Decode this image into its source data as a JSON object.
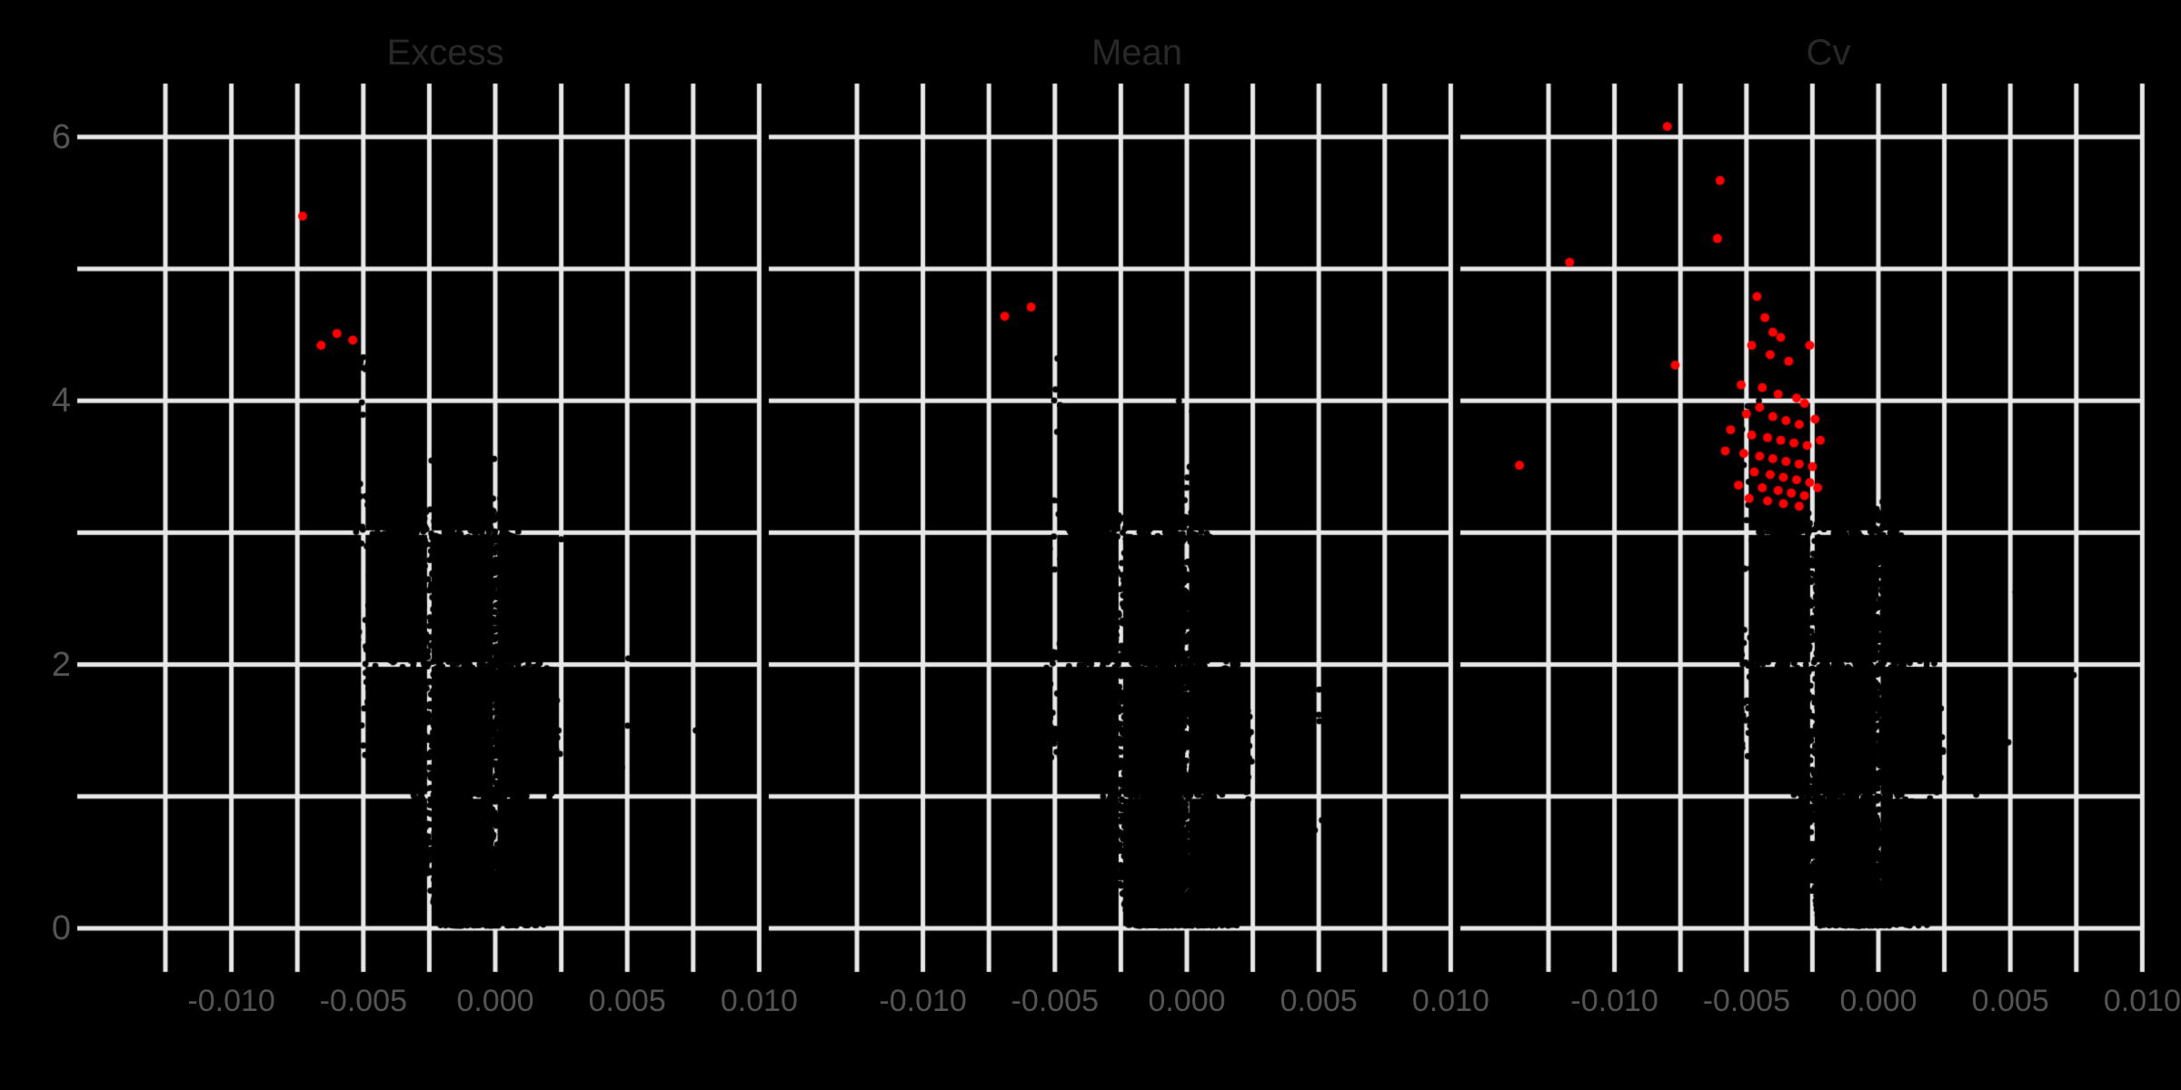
{
  "figure": {
    "background": "#000000",
    "grid_color": "#e8e8e8",
    "axis_label_color": "#545454",
    "title_color": "#282828",
    "point_color": "#000000",
    "highlight_color": "#ff0000"
  },
  "chart_data": {
    "type": "scatter",
    "layout_hint": "three lattice panels sharing one y axis, white reference grid on black, dense black volcano-shaped point clouds with red highlighted points",
    "panels": [
      {
        "title": "Excess",
        "red_points": [
          [
            -0.0073,
            5.4
          ],
          [
            -0.0066,
            4.42
          ],
          [
            -0.006,
            4.51
          ],
          [
            -0.0054,
            4.46
          ]
        ],
        "black_outliers": [
          [
            0.0076,
            1.5
          ],
          [
            -0.005,
            4.33
          ],
          [
            -0.0047,
            4.21
          ],
          [
            0.0022,
            3.4
          ],
          [
            0.0025,
            2.95
          ],
          [
            0.0045,
            1.45
          ],
          [
            0.0041,
            1.3
          ],
          [
            0.0048,
            1.22
          ]
        ],
        "seed": 101
      },
      {
        "title": "Mean",
        "red_points": [
          [
            -0.0069,
            4.64
          ],
          [
            -0.0059,
            4.71
          ]
        ],
        "black_outliers": [
          [
            -0.0056,
            4.36
          ],
          [
            -0.0049,
            4.32
          ],
          [
            0.005,
            1.62
          ],
          [
            0.0044,
            1.38
          ],
          [
            0.004,
            1.25
          ],
          [
            0.0047,
            2.3
          ],
          [
            -0.0003,
            4.0
          ],
          [
            0.0002,
            3.92
          ]
        ],
        "seed": 202
      },
      {
        "title": "Cv",
        "red_points": [
          [
            -0.008,
            6.08
          ],
          [
            -0.006,
            5.67
          ],
          [
            -0.0061,
            5.23
          ],
          [
            -0.0117,
            5.05
          ],
          [
            -0.0136,
            3.51
          ],
          [
            -0.0077,
            4.27
          ],
          [
            -0.0046,
            4.79
          ],
          [
            -0.0043,
            4.63
          ],
          [
            -0.004,
            4.52
          ],
          [
            -0.0037,
            4.48
          ],
          [
            -0.0048,
            4.42
          ],
          [
            -0.0041,
            4.35
          ],
          [
            -0.0034,
            4.3
          ],
          [
            -0.0026,
            4.42
          ],
          [
            -0.0052,
            4.12
          ],
          [
            -0.0044,
            4.1
          ],
          [
            -0.0038,
            4.05
          ],
          [
            -0.0031,
            4.02
          ],
          [
            -0.0028,
            3.98
          ],
          [
            -0.0045,
            3.95
          ],
          [
            -0.005,
            3.9
          ],
          [
            -0.004,
            3.88
          ],
          [
            -0.0035,
            3.85
          ],
          [
            -0.003,
            3.82
          ],
          [
            -0.0024,
            3.86
          ],
          [
            -0.0056,
            3.78
          ],
          [
            -0.0048,
            3.74
          ],
          [
            -0.0042,
            3.72
          ],
          [
            -0.0037,
            3.7
          ],
          [
            -0.0032,
            3.68
          ],
          [
            -0.0027,
            3.66
          ],
          [
            -0.0022,
            3.7
          ],
          [
            -0.0058,
            3.62
          ],
          [
            -0.0051,
            3.6
          ],
          [
            -0.0045,
            3.58
          ],
          [
            -0.004,
            3.56
          ],
          [
            -0.0035,
            3.54
          ],
          [
            -0.003,
            3.52
          ],
          [
            -0.0025,
            3.5
          ],
          [
            -0.0047,
            3.46
          ],
          [
            -0.0041,
            3.44
          ],
          [
            -0.0036,
            3.42
          ],
          [
            -0.0031,
            3.4
          ],
          [
            -0.0026,
            3.38
          ],
          [
            -0.0053,
            3.36
          ],
          [
            -0.0044,
            3.34
          ],
          [
            -0.0038,
            3.32
          ],
          [
            -0.0033,
            3.3
          ],
          [
            -0.0028,
            3.28
          ],
          [
            -0.0023,
            3.34
          ],
          [
            -0.0049,
            3.26
          ],
          [
            -0.0042,
            3.24
          ],
          [
            -0.0036,
            3.22
          ],
          [
            -0.003,
            3.2
          ]
        ],
        "black_outliers": [
          [
            0.0065,
            3.22
          ],
          [
            0.0074,
            1.92
          ],
          [
            0.0048,
            1.4
          ],
          [
            0.0052,
            2.55
          ],
          [
            -0.0005,
            3.95
          ]
        ],
        "seed": 303
      }
    ],
    "x_tick_labels": [
      "-0.010",
      "-0.005",
      "0.000",
      "0.005",
      "0.010"
    ],
    "x_tick_values": [
      -0.01,
      -0.005,
      0.0,
      0.005,
      0.01
    ],
    "y_tick_labels": [
      "0",
      "2",
      "4",
      "6"
    ],
    "y_tick_values": [
      0,
      2,
      4,
      6
    ],
    "x_gridline_values": [
      -0.0125,
      -0.01,
      -0.0075,
      -0.005,
      -0.0025,
      0.0,
      0.0025,
      0.005,
      0.0075,
      0.01
    ],
    "y_gridline_values": [
      0,
      1,
      2,
      3,
      4,
      5,
      6
    ],
    "xlim": [
      -0.01585,
      0.01
    ],
    "ylim": [
      0,
      6.4
    ],
    "grid": true,
    "legend": false,
    "cloud_model": {
      "main": {
        "n": 3400,
        "mu_x": -0.0006,
        "sigma_x": 0.00145,
        "x_clip": [
          -0.005,
          0.003
        ],
        "y_pow": 1.45,
        "y_min": 0.02,
        "top_profile": [
          [
            -0.005,
            1.2
          ],
          [
            -0.0042,
            2.6
          ],
          [
            -0.0034,
            3.1
          ],
          [
            -0.002,
            3.18
          ],
          [
            -0.0004,
            3.22
          ],
          [
            0.0006,
            3.1
          ],
          [
            0.0014,
            2.8
          ],
          [
            0.002,
            2.3
          ],
          [
            0.0026,
            1.3
          ],
          [
            0.003,
            0.5
          ]
        ],
        "left_edge": {
          "base": 0.0022,
          "slope": 0.0011,
          "y_max": 2.2
        },
        "right_edge": {
          "base": 0.0019,
          "slope": 0.00045
        },
        "slits": [
          {
            "cx": 0.00035,
            "w0": 5e-05,
            "w_slope": 0.0003,
            "y_max": 0.98
          },
          {
            "cx": 0.00165,
            "w0": 4e-05,
            "w_slope": 0.00026,
            "y_max": 1.08
          }
        ]
      },
      "shelf": {
        "n": 280,
        "mu_x": -0.0036,
        "sigma_x": 0.00048,
        "x_clip": [
          -0.0049,
          -0.0026
        ],
        "mu_y": 3.03,
        "sigma_y": 0.14,
        "y_clip": [
          2.78,
          3.38
        ]
      },
      "mini_blob": {
        "n": 70,
        "mu_x": -0.0037,
        "sigma_x": 0.00032,
        "mu_y": 2.18,
        "sigma_y": 0.11
      },
      "trail_dense": {
        "n": 42,
        "mu_x": -0.00495,
        "sigma_x": 0.00026,
        "y_base": 1.25,
        "sigma_y": 0.7
      },
      "trail_sparse": {
        "n": 18,
        "mu_x": -0.00495,
        "sigma_x": 0.00026,
        "y_range": [
          2.6,
          4.33
        ]
      },
      "top_fuzz": {
        "n": 26,
        "mu_x": -0.0008,
        "sigma_x": 0.0013,
        "x_clip": [
          -0.004,
          0.0018
        ],
        "sigma_y": 0.22
      },
      "right_sparse": {
        "n": 10,
        "x_range": [
          0.0028,
          0.0052
        ],
        "mu_y": 1.35,
        "sigma_y": 0.28
      }
    }
  }
}
